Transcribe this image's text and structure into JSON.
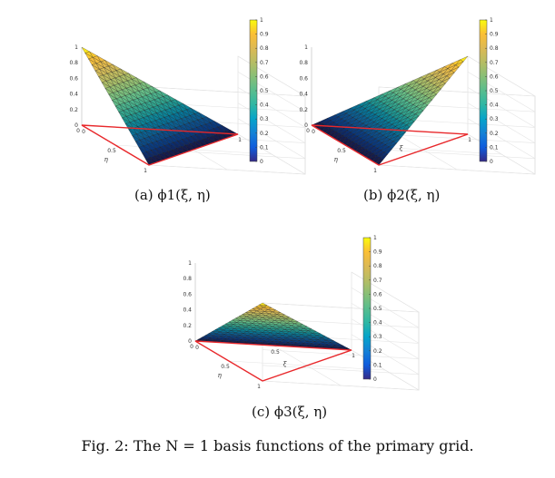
{
  "figure_caption": "Fig. 2: The N = 1 basis functions of the primary grid.",
  "chart_data": [
    {
      "type": "surface",
      "caption": "(a) ϕ1(ξ, η)",
      "function": "1 - xi - eta",
      "domain": "triangle 0 ≤ ξ, 0 ≤ η, ξ + η ≤ 1",
      "xlabel": "ξ",
      "ylabel": "η",
      "zlabel": "",
      "xlim": [
        0,
        1
      ],
      "ylim": [
        0,
        1
      ],
      "zlim": [
        0,
        1
      ],
      "x_ticks": [
        "0",
        "0.5",
        "1"
      ],
      "y_ticks": [
        "0",
        "0.5",
        "1"
      ],
      "z_ticks": [
        "0",
        "0.2",
        "0.4",
        "0.6",
        "0.8",
        "1"
      ],
      "vertex_values": [
        {
          "xi": 0,
          "eta": 0,
          "value": 1
        },
        {
          "xi": 1,
          "eta": 0,
          "value": 0
        },
        {
          "xi": 0,
          "eta": 1,
          "value": 0
        }
      ],
      "colorbar": {
        "min": 0,
        "max": 1,
        "ticks": [
          "0",
          "0.1",
          "0.2",
          "0.3",
          "0.4",
          "0.5",
          "0.6",
          "0.7",
          "0.8",
          "0.9",
          "1"
        ],
        "colormap": "parula"
      },
      "grid": true,
      "domain_edge_color": "#e8282b"
    },
    {
      "type": "surface",
      "caption": "(b) ϕ2(ξ, η)",
      "function": "xi",
      "domain": "triangle 0 ≤ ξ, 0 ≤ η, ξ + η ≤ 1",
      "xlabel": "ξ",
      "ylabel": "η",
      "zlabel": "",
      "xlim": [
        0,
        1
      ],
      "ylim": [
        0,
        1
      ],
      "zlim": [
        0,
        1
      ],
      "x_ticks": [
        "0",
        "0.5",
        "1"
      ],
      "y_ticks": [
        "0",
        "0.5",
        "1"
      ],
      "z_ticks": [
        "0",
        "0.2",
        "0.4",
        "0.6",
        "0.8",
        "1"
      ],
      "vertex_values": [
        {
          "xi": 0,
          "eta": 0,
          "value": 0
        },
        {
          "xi": 1,
          "eta": 0,
          "value": 1
        },
        {
          "xi": 0,
          "eta": 1,
          "value": 0
        }
      ],
      "colorbar": {
        "min": 0,
        "max": 1,
        "ticks": [
          "0",
          "0.1",
          "0.2",
          "0.3",
          "0.4",
          "0.5",
          "0.6",
          "0.7",
          "0.8",
          "0.9",
          "1"
        ],
        "colormap": "parula"
      },
      "grid": true,
      "domain_edge_color": "#e8282b"
    },
    {
      "type": "surface",
      "caption": "(c) ϕ3(ξ, η)",
      "function": "eta",
      "domain": "triangle 0 ≤ ξ, 0 ≤ η, ξ + η ≤ 1",
      "xlabel": "ξ",
      "ylabel": "η",
      "zlabel": "",
      "xlim": [
        0,
        1
      ],
      "ylim": [
        0,
        1
      ],
      "zlim": [
        0,
        1
      ],
      "x_ticks": [
        "0",
        "0.5",
        "1"
      ],
      "y_ticks": [
        "0",
        "0.5",
        "1"
      ],
      "z_ticks": [
        "0",
        "0.2",
        "0.4",
        "0.6",
        "0.8",
        "1"
      ],
      "vertex_values": [
        {
          "xi": 0,
          "eta": 0,
          "value": 0
        },
        {
          "xi": 1,
          "eta": 0,
          "value": 0
        },
        {
          "xi": 0,
          "eta": 1,
          "value": 1
        }
      ],
      "colorbar": {
        "min": 0,
        "max": 1,
        "ticks": [
          "0",
          "0.1",
          "0.2",
          "0.3",
          "0.4",
          "0.5",
          "0.6",
          "0.7",
          "0.8",
          "0.9",
          "1"
        ],
        "colormap": "parula"
      },
      "grid": true,
      "domain_edge_color": "#e8282b"
    }
  ]
}
